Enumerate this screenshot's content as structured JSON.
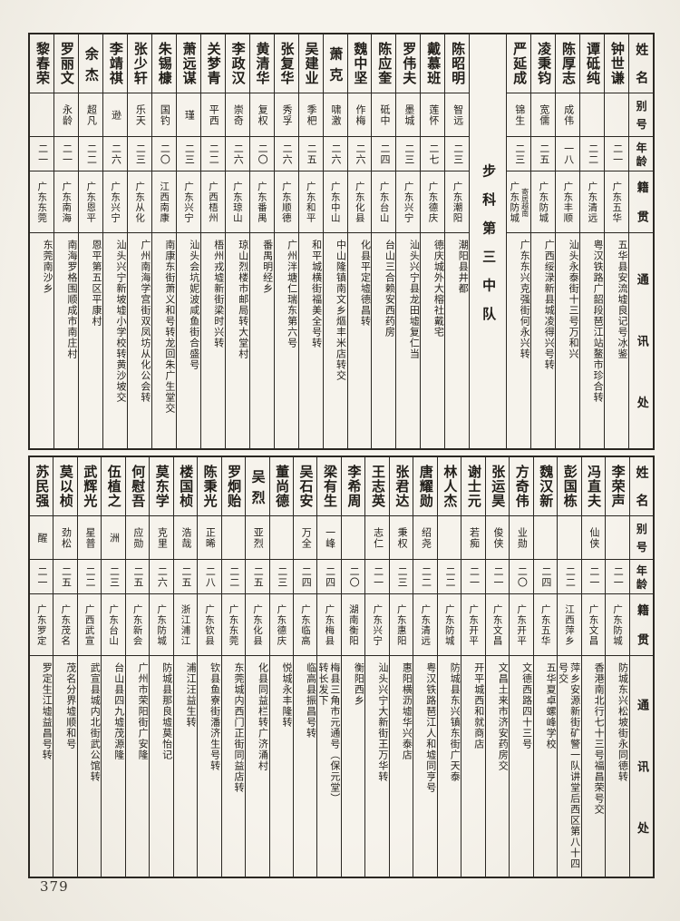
{
  "page_number": "379",
  "headers": [
    "姓名",
    "别号",
    "年龄",
    "籍贯",
    "通讯处"
  ],
  "top_table": {
    "divider": {
      "label": "步科第三中队",
      "after_index": 4
    },
    "people": [
      {
        "name": "钟世谦",
        "alias": "",
        "age": "二一",
        "native": "广东五华",
        "address": "五华县安流墟良记号冰鉴"
      },
      {
        "name": "谭砥纯",
        "alias": "",
        "age": "二二",
        "native": "广东清远",
        "address": "粤汉铁路广韶段琶江站鳌市珍合转"
      },
      {
        "name": "陈厚志",
        "alias": "成伟",
        "age": "一八",
        "native": "广东丰顺",
        "address": "汕头永泰街十三号万和兴"
      },
      {
        "name": "凌秉钧",
        "alias": "宽儒",
        "age": "二五",
        "native": "广东防城",
        "address": "广西绥渌新县城凌得兴号转"
      },
      {
        "name": "严延成",
        "alias": "锦生",
        "age": "二三",
        "native": "广东防城",
        "native_note": "寄居越南",
        "address": "广东东兴克强街何永兴转"
      },
      {
        "name": "陈昭明",
        "alias": "智远",
        "age": "二三",
        "native": "广东潮阳",
        "address": "潮阳县井都"
      },
      {
        "name": "戴慕班",
        "alias": "莲怀",
        "age": "二七",
        "native": "广东德庆",
        "address": "德庆城外大榕社戴宅"
      },
      {
        "name": "罗伟夫",
        "alias": "墨城",
        "age": "二三",
        "native": "广东兴宁",
        "address": "汕头兴宁县龙田墟复仁当"
      },
      {
        "name": "陈应奎",
        "alias": "砥中",
        "age": "二四",
        "native": "广东台山",
        "address": "台山三合赖安西药房"
      },
      {
        "name": "魏中坚",
        "alias": "作梅",
        "age": "二六",
        "native": "广东化县",
        "address": "化县平定墟德昌转"
      },
      {
        "name": "萧克",
        "alias": "啸激",
        "age": "二六",
        "native": "广东中山",
        "address": "中山隆镇南文乡熰丰米店转交"
      },
      {
        "name": "吴建业",
        "alias": "季杷",
        "age": "二五",
        "native": "广东和平",
        "address": "和平城横街福美全号转"
      },
      {
        "name": "张复华",
        "alias": "秀孚",
        "age": "二六",
        "native": "广东顺德",
        "address": "广州泮塘仁瑞东第六号"
      },
      {
        "name": "黄清华",
        "alias": "复权",
        "age": "二〇",
        "native": "广东番禺",
        "address": "番禺明经乡"
      },
      {
        "name": "李政汉",
        "alias": "崇奇",
        "age": "二六",
        "native": "广东琼山",
        "address": "琼山烈楼市邮局转大堂村"
      },
      {
        "name": "关梦青",
        "alias": "平西",
        "age": "二二",
        "native": "广西梧州",
        "address": "梧州戎墟新街梁时兴转"
      },
      {
        "name": "萧远谋",
        "alias": "瑾",
        "age": "二三",
        "native": "广东兴宁",
        "address": "汕头会坑妮波咸鱼街合盛号"
      },
      {
        "name": "朱锡槺",
        "alias": "国钓",
        "age": "二〇",
        "native": "江西南康",
        "address": "南康东街萧义和号转龙回朱广生堂交"
      },
      {
        "name": "张少轩",
        "alias": "乐天",
        "age": "二三",
        "native": "广东从化",
        "address": "广州南海学宫街双凤坊从化公会转"
      },
      {
        "name": "李靖祺",
        "alias": "逊",
        "age": "二六",
        "native": "广东兴宁",
        "address": "汕头兴宁新坡墟小学校转黄沙坡交"
      },
      {
        "name": "余杰",
        "alias": "超凡",
        "age": "二二",
        "native": "广东恩平",
        "address": "恩平第五区平康村"
      },
      {
        "name": "罗丽文",
        "alias": "永龄",
        "age": "二一",
        "native": "广东南海",
        "address": "南海罗格围顺成市南庄村"
      },
      {
        "name": "黎春荣",
        "alias": "",
        "age": "二一",
        "native": "广东东莞",
        "address": "东莞南沙乡"
      }
    ]
  },
  "bottom_table": {
    "people": [
      {
        "name": "李荣声",
        "alias": "",
        "age": "二一",
        "native": "广东防城",
        "address": "防城东兴松坡街永同德转"
      },
      {
        "name": "冯直夫",
        "alias": "仙侠",
        "age": "二一",
        "native": "广东文昌",
        "address": "香港南北行七十三号福昌荣号交"
      },
      {
        "name": "彭国栋",
        "alias": "",
        "age": "二二",
        "native": "江西萍乡",
        "address": "萍乡安源新街矿警一队讲堂后西区第八十四\n号交"
      },
      {
        "name": "魏汉新",
        "alias": "",
        "age": "二四",
        "native": "广东五华",
        "address": "五华夏卓螺峰学校"
      },
      {
        "name": "方奇伟",
        "alias": "业勋",
        "age": "二〇",
        "native": "广东开平",
        "address": "文德西路四十三号"
      },
      {
        "name": "张运昊",
        "alias": "俊侠",
        "age": "二一",
        "native": "广东文昌",
        "address": "文昌土来市济安药房交"
      },
      {
        "name": "谢士元",
        "alias": "若痴",
        "age": "二一",
        "native": "广东开平",
        "address": "开平城西和就商店"
      },
      {
        "name": "林人杰",
        "alias": "",
        "age": "二二",
        "native": "广东防城",
        "address": "防城县东兴镇东街广天泰"
      },
      {
        "name": "唐耀勋",
        "alias": "绍尧",
        "age": "二二",
        "native": "广东清远",
        "address": "粤汉铁路琶江人和墟同亨号"
      },
      {
        "name": "张君达",
        "alias": "秉权",
        "age": "二三",
        "native": "广东惠阳",
        "address": "惠阳横沥墟华兴泰店"
      },
      {
        "name": "王志英",
        "alias": "志仁",
        "age": "二一",
        "native": "广东兴宁",
        "address": "汕头兴宁大新街王万华转"
      },
      {
        "name": "李希周",
        "alias": "",
        "age": "二〇",
        "native": "湖南衡阳",
        "address": "衡阳西乡"
      },
      {
        "name": "梁有生",
        "alias": "一峰",
        "age": "二四",
        "native": "广东梅县",
        "address": "梅县三角市元通号（保元堂）\n转长发下"
      },
      {
        "name": "吴石安",
        "alias": "万全",
        "age": "二四",
        "native": "广东临高",
        "address": "临高县振昌号转"
      },
      {
        "name": "董尚德",
        "alias": "",
        "age": "二三",
        "native": "广东德庆",
        "address": "悦城永丰隆转"
      },
      {
        "name": "吴烈",
        "alias": "亚烈",
        "age": "二五",
        "native": "广东化县",
        "address": "化县同益栏转广济涌村"
      },
      {
        "name": "罗炯贻",
        "alias": "",
        "age": "二二",
        "native": "广东东莞",
        "address": "东莞城内西门正街同益店转"
      },
      {
        "name": "陈秉光",
        "alias": "正晞",
        "age": "二八",
        "native": "广东钦县",
        "address": "钦县鱼寮街潘济生号转"
      },
      {
        "name": "楼国桢",
        "alias": "浩哉",
        "age": "二五",
        "native": "浙江浦江",
        "address": "浦江汪益生转"
      },
      {
        "name": "莫东学",
        "alias": "克里",
        "age": "二六",
        "native": "广东防城",
        "address": "防城县那良墟莫怡记"
      },
      {
        "name": "何慰吾",
        "alias": "应勋",
        "age": "二五",
        "native": "广东新会",
        "address": "广州市荣阳街广安隆"
      },
      {
        "name": "伍植之",
        "alias": "洲",
        "age": "二三",
        "native": "广东台山",
        "address": "台山县四九墟茂源隆"
      },
      {
        "name": "武辉光",
        "alias": "星普",
        "age": "二二",
        "native": "广西武宣",
        "address": "武宣县城内北街武公馆转"
      },
      {
        "name": "莫以桢",
        "alias": "劲松",
        "age": "二五",
        "native": "广东茂名",
        "address": "茂名分界墟顺和号"
      },
      {
        "name": "苏民强",
        "alias": "醒",
        "age": "二一",
        "native": "广东罗定",
        "address": "罗定生江墟益昌号转"
      }
    ]
  }
}
